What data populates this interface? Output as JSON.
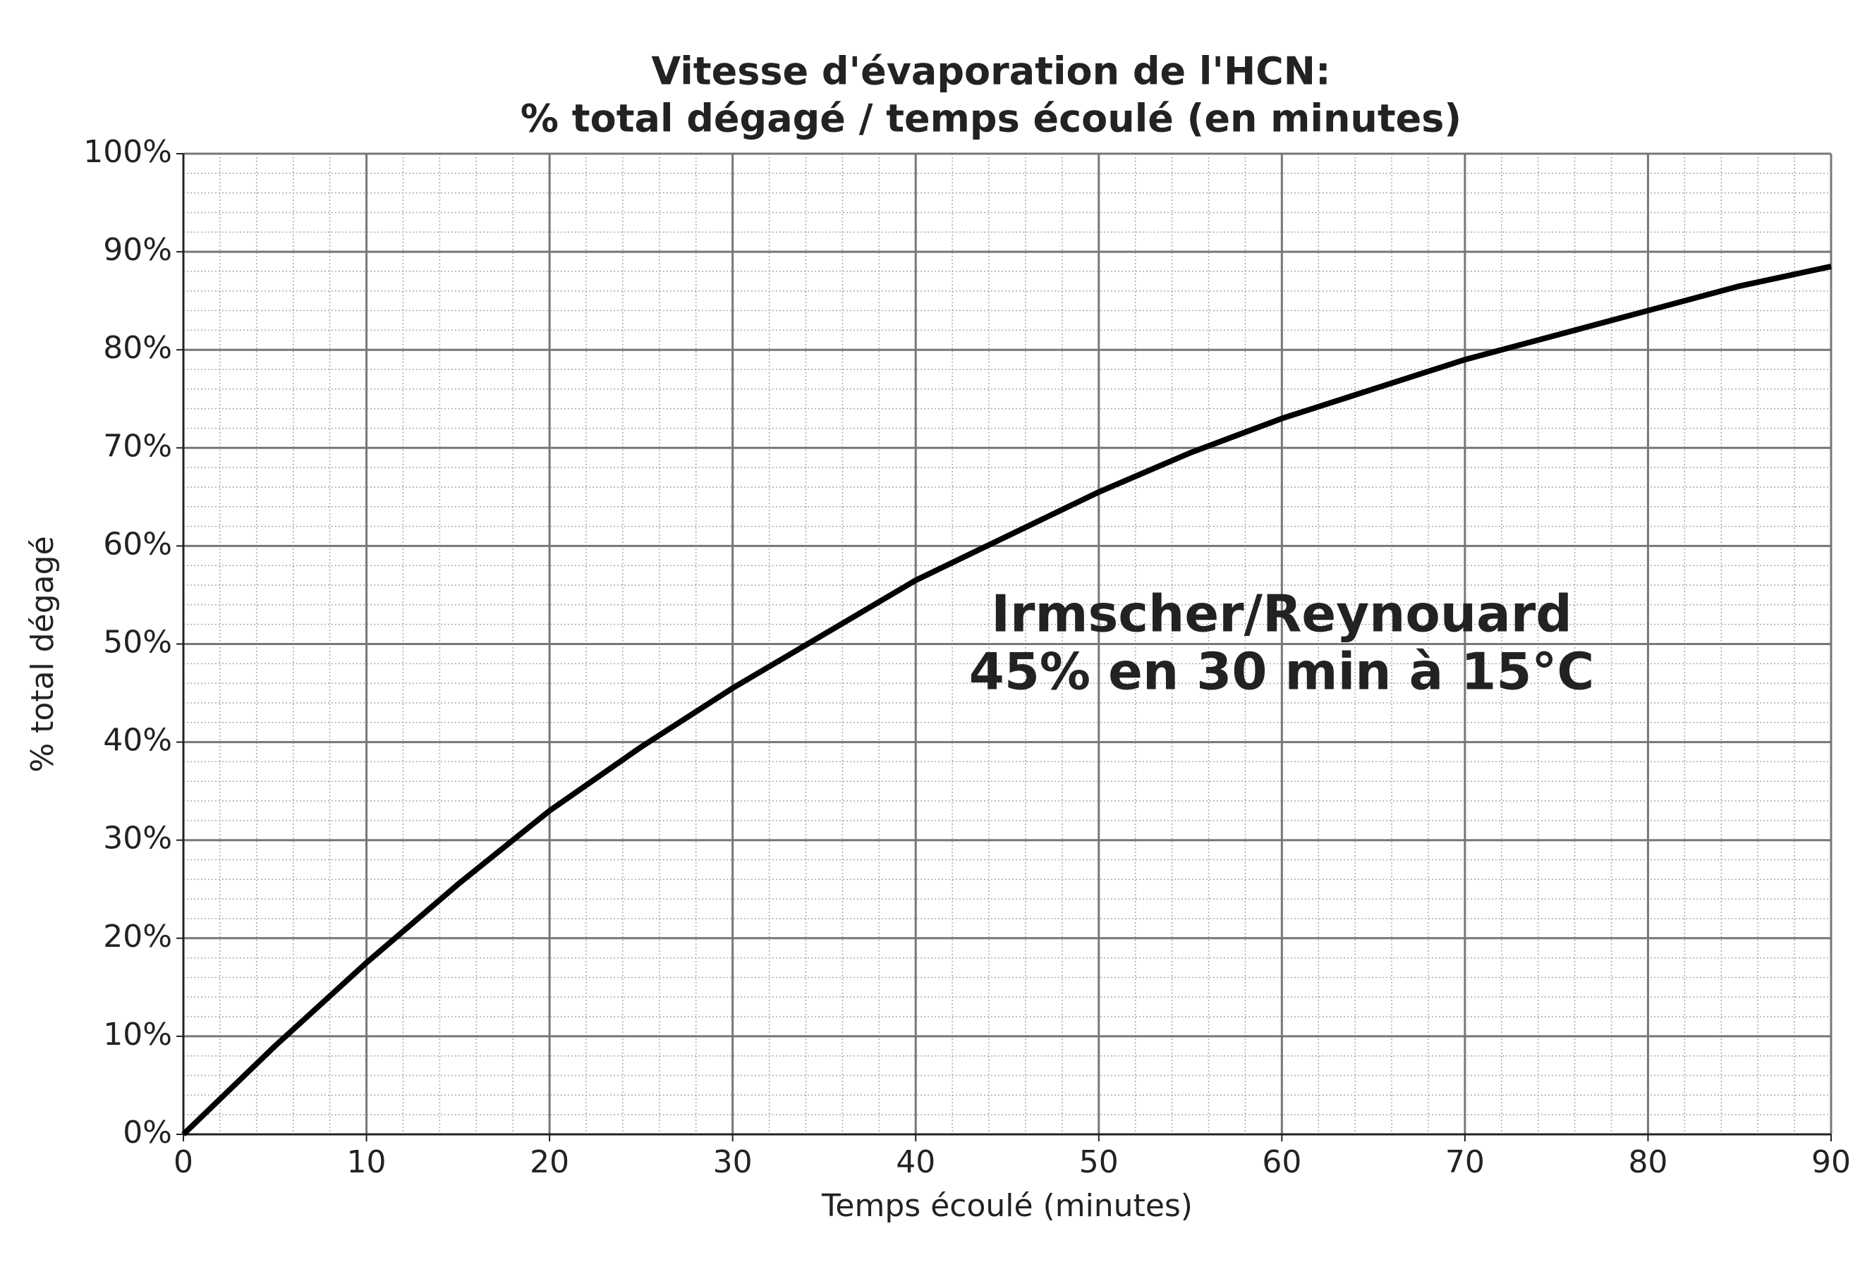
{
  "chart_data": {
    "type": "line",
    "title": [
      "Vitesse d'évaporation de l'HCN:",
      "% total dégagé / temps écoulé (en minutes)"
    ],
    "xlabel": "Temps écoulé (minutes)",
    "ylabel": "% total dégagé",
    "annotation": [
      "Irmscher/Reynouard",
      "45% en 30 min à 15°C"
    ],
    "x": [
      0,
      5,
      10,
      15,
      20,
      25,
      30,
      35,
      40,
      45,
      50,
      55,
      60,
      65,
      70,
      75,
      80,
      85,
      90
    ],
    "series": [
      {
        "color": "#000000",
        "values": [
          0,
          9,
          17.5,
          25.5,
          33,
          39.5,
          45.5,
          51,
          56.5,
          61,
          65.5,
          69.5,
          73,
          76,
          79,
          81.5,
          84,
          86.5,
          88.5
        ]
      }
    ],
    "xlim": [
      0,
      90
    ],
    "xticks": [
      0,
      10,
      20,
      30,
      40,
      50,
      60,
      70,
      80,
      90
    ],
    "ylim": [
      0,
      100
    ],
    "yticks": [
      {
        "value": 0,
        "label": "0%"
      },
      {
        "value": 10,
        "label": "10%"
      },
      {
        "value": 20,
        "label": "20%"
      },
      {
        "value": 30,
        "label": "30%"
      },
      {
        "value": 40,
        "label": "40%"
      },
      {
        "value": 50,
        "label": "50%"
      },
      {
        "value": 60,
        "label": "60%"
      },
      {
        "value": 70,
        "label": "70%"
      },
      {
        "value": 80,
        "label": "80%"
      },
      {
        "value": 90,
        "label": "90%"
      },
      {
        "value": 100,
        "label": "100%"
      }
    ],
    "grid": true,
    "minor_grid": true
  }
}
